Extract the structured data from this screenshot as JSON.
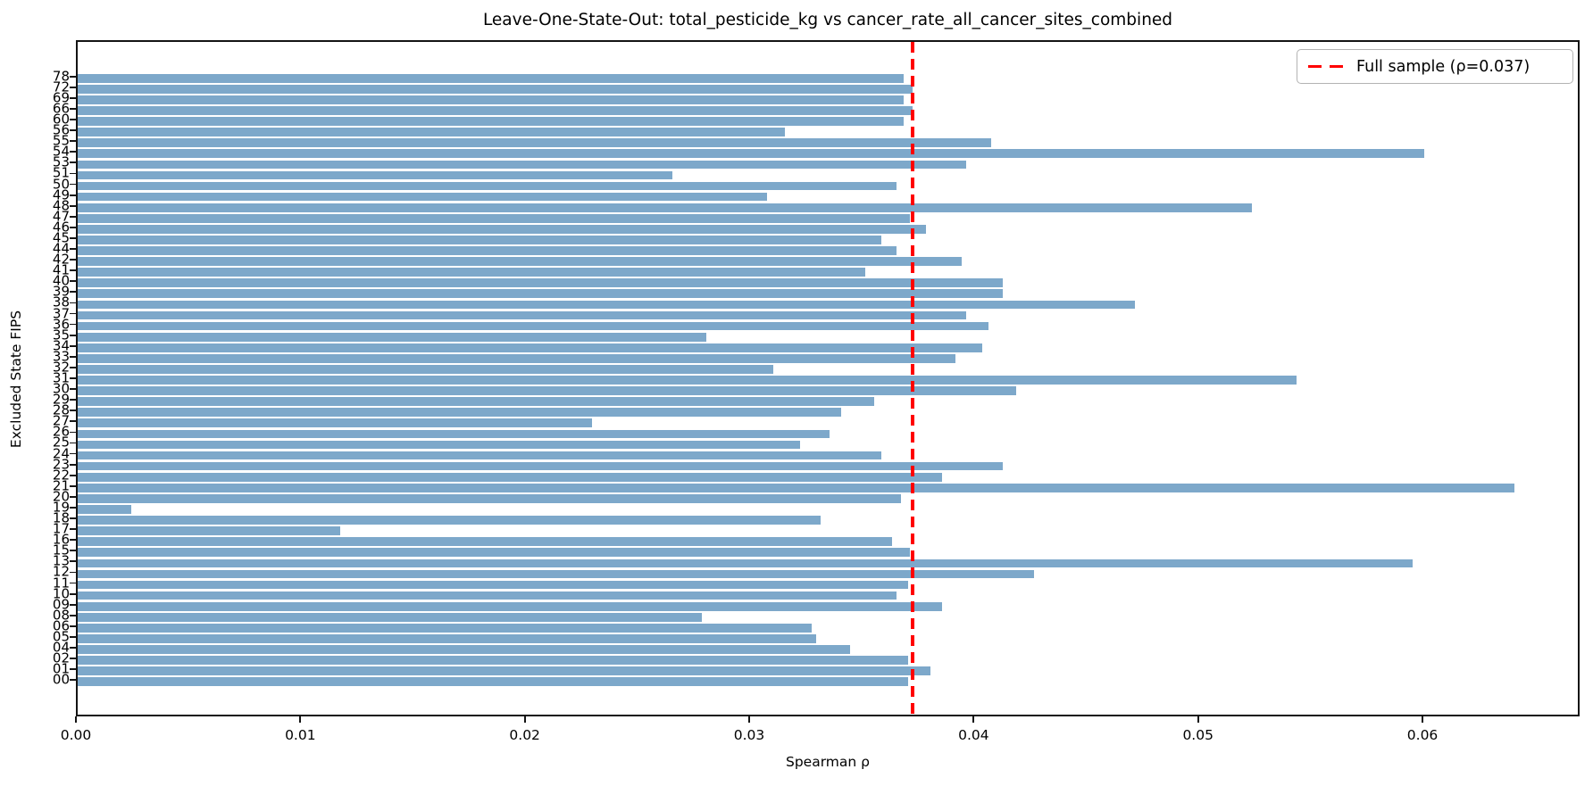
{
  "chart_data": {
    "type": "bar",
    "orientation": "horizontal",
    "title": "Leave-One-State-Out: total_pesticide_kg vs cancer_rate_all_cancer_sites_combined",
    "xlabel": "Spearman ρ",
    "ylabel": "Excluded State FIPS",
    "xlim": [
      0,
      0.067
    ],
    "grid": false,
    "bar_color": "#7da8ca",
    "axis_color": "#141414",
    "xticks": {
      "values": [
        0,
        0.01,
        0.02,
        0.03,
        0.04,
        0.05,
        0.06
      ],
      "labels": [
        "0.00",
        "0.01",
        "0.02",
        "0.03",
        "0.04",
        "0.05",
        "0.06"
      ]
    },
    "categories": [
      "78",
      "72",
      "69",
      "66",
      "60",
      "56",
      "55",
      "54",
      "53",
      "51",
      "50",
      "49",
      "48",
      "47",
      "46",
      "45",
      "44",
      "42",
      "41",
      "40",
      "39",
      "38",
      "37",
      "36",
      "35",
      "34",
      "33",
      "32",
      "31",
      "30",
      "29",
      "28",
      "27",
      "26",
      "25",
      "24",
      "23",
      "22",
      "21",
      "20",
      "19",
      "18",
      "17",
      "16",
      "15",
      "13",
      "12",
      "11",
      "10",
      "09",
      "08",
      "06",
      "05",
      "04",
      "02",
      "01",
      "00"
    ],
    "values": [
      0.0368,
      0.0372,
      0.0368,
      0.0372,
      0.0368,
      0.0315,
      0.0407,
      0.06,
      0.0396,
      0.0265,
      0.0365,
      0.0307,
      0.0523,
      0.0371,
      0.0378,
      0.0358,
      0.0365,
      0.0394,
      0.0351,
      0.0412,
      0.0412,
      0.0471,
      0.0396,
      0.0406,
      0.028,
      0.0403,
      0.0391,
      0.031,
      0.0543,
      0.0418,
      0.0355,
      0.034,
      0.0229,
      0.0335,
      0.0322,
      0.0358,
      0.0412,
      0.0385,
      0.064,
      0.0367,
      0.0024,
      0.0331,
      0.0117,
      0.0363,
      0.0371,
      0.0595,
      0.0426,
      0.037,
      0.0365,
      0.0385,
      0.0278,
      0.0327,
      0.0329,
      0.0344,
      0.037,
      0.038,
      0.037
    ],
    "reference_line": {
      "value": 0.0372,
      "color": "#ff0000",
      "style": "dashed",
      "label": "Full sample (ρ=0.037)"
    },
    "legend": {
      "position": "upper right",
      "entries": [
        {
          "label": "Full sample (ρ=0.037)",
          "color": "#ff0000",
          "style": "dashed"
        }
      ]
    }
  }
}
